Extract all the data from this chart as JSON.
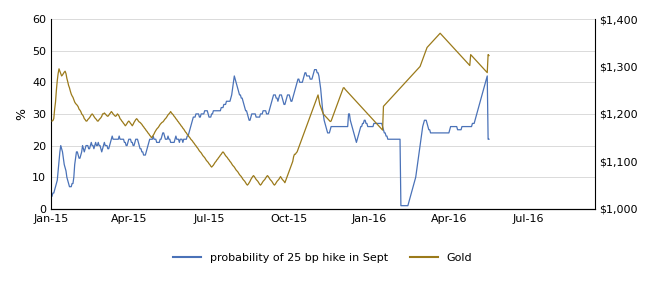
{
  "ylabel_left": "%",
  "ylim_left": [
    0,
    60
  ],
  "ylim_right": [
    1000,
    1400
  ],
  "yticks_left": [
    0,
    10,
    20,
    30,
    40,
    50,
    60
  ],
  "yticks_right": [
    1000,
    1100,
    1200,
    1300,
    1400
  ],
  "line1_color": "#4a72b8",
  "line2_color": "#9b7a1a",
  "line1_label": "probability of 25 bp hike in Sept",
  "line2_label": "Gold",
  "background_color": "#ffffff",
  "prob": [
    4,
    5,
    5,
    6,
    7,
    8,
    9,
    12,
    15,
    18,
    20,
    19,
    18,
    16,
    14,
    13,
    12,
    10,
    9,
    8,
    7,
    7,
    7,
    8,
    8,
    10,
    14,
    16,
    18,
    18,
    17,
    16,
    16,
    17,
    18,
    20,
    19,
    18,
    19,
    20,
    20,
    20,
    19,
    19,
    20,
    21,
    20,
    20,
    19,
    20,
    21,
    20,
    20,
    21,
    20,
    20,
    19,
    18,
    19,
    20,
    21,
    20,
    20,
    20,
    19,
    19,
    20,
    21,
    22,
    23,
    22,
    22,
    22,
    22,
    22,
    22,
    22,
    23,
    22,
    22,
    22,
    22,
    22,
    21,
    21,
    20,
    20,
    21,
    22,
    22,
    22,
    21,
    21,
    20,
    20,
    21,
    22,
    22,
    22,
    21,
    20,
    19,
    19,
    18,
    18,
    17,
    17,
    17,
    18,
    19,
    20,
    21,
    22,
    22,
    22,
    22,
    23,
    22,
    22,
    22,
    21,
    21,
    21,
    21,
    22,
    22,
    23,
    24,
    24,
    23,
    22,
    22,
    22,
    23,
    22,
    22,
    21,
    21,
    21,
    21,
    21,
    22,
    23,
    22,
    22,
    22,
    21,
    22,
    22,
    22,
    21,
    22,
    22,
    22,
    22,
    23,
    23,
    24,
    25,
    26,
    27,
    28,
    29,
    29,
    29,
    30,
    30,
    30,
    30,
    29,
    29,
    30,
    30,
    30,
    30,
    31,
    31,
    31,
    31,
    30,
    29,
    29,
    29,
    30,
    30,
    31,
    31,
    31,
    31,
    31,
    31,
    31,
    31,
    31,
    32,
    32,
    32,
    33,
    33,
    33,
    34,
    34,
    34,
    34,
    34,
    35,
    36,
    38,
    40,
    42,
    41,
    40,
    39,
    38,
    37,
    36,
    36,
    35,
    35,
    34,
    33,
    32,
    31,
    31,
    30,
    29,
    28,
    28,
    29,
    30,
    30,
    30,
    30,
    30,
    29,
    29,
    29,
    29,
    29,
    30,
    30,
    30,
    31,
    31,
    31,
    31,
    30,
    30,
    30,
    31,
    32,
    33,
    34,
    35,
    36,
    36,
    36,
    35,
    35,
    34,
    35,
    36,
    36,
    36,
    35,
    34,
    33,
    33,
    34,
    35,
    36,
    36,
    36,
    35,
    34,
    34,
    35,
    36,
    37,
    38,
    39,
    40,
    41,
    41,
    40,
    40,
    40,
    40,
    41,
    42,
    43,
    43,
    42,
    42,
    42,
    42,
    41,
    41,
    41,
    42,
    43,
    44,
    44,
    44,
    43,
    43,
    42,
    40,
    38,
    35,
    32,
    30,
    28,
    27,
    26,
    25,
    24,
    24,
    24,
    25,
    26,
    26,
    26,
    26,
    26,
    26,
    26,
    26,
    26,
    26,
    26,
    26,
    26,
    26,
    26,
    26,
    26,
    26,
    26,
    26,
    30,
    30,
    28,
    27,
    26,
    25,
    24,
    23,
    22,
    21,
    22,
    23,
    24,
    25,
    26,
    26,
    27,
    27,
    28,
    28,
    27,
    27,
    26,
    26,
    26,
    26,
    26,
    26,
    26,
    27,
    27,
    27,
    27,
    27,
    27,
    27,
    27,
    27,
    27,
    26,
    25,
    24,
    24,
    23,
    23,
    22,
    22,
    22,
    22,
    22,
    22,
    22,
    22,
    22,
    22,
    22,
    22,
    22,
    22,
    22,
    1,
    1,
    1,
    1,
    1,
    1,
    1,
    1,
    1,
    2,
    3,
    4,
    5,
    6,
    7,
    8,
    9,
    10,
    12,
    14,
    16,
    18,
    20,
    22,
    24,
    26,
    27,
    28,
    28,
    28,
    27,
    26,
    25,
    25,
    24,
    24,
    24,
    24,
    24,
    24,
    24,
    24,
    24,
    24,
    24,
    24,
    24,
    24,
    24,
    24,
    24,
    24,
    24,
    24,
    24,
    24,
    25,
    26,
    26,
    26,
    26,
    26,
    26,
    26,
    26,
    25,
    25,
    25,
    25,
    25,
    26,
    26,
    26,
    26,
    26,
    26,
    26,
    26,
    26,
    26,
    26,
    26,
    27,
    27,
    27,
    28,
    29,
    30,
    31,
    32,
    33,
    34,
    35,
    36,
    37,
    38,
    39,
    40,
    41,
    42,
    22,
    22
  ],
  "gold": [
    1185,
    1186,
    1190,
    1210,
    1225,
    1250,
    1270,
    1285,
    1295,
    1290,
    1285,
    1280,
    1282,
    1285,
    1288,
    1290,
    1285,
    1275,
    1268,
    1260,
    1255,
    1248,
    1242,
    1238,
    1235,
    1230,
    1225,
    1222,
    1220,
    1218,
    1215,
    1210,
    1208,
    1205,
    1200,
    1198,
    1195,
    1190,
    1188,
    1185,
    1185,
    1188,
    1190,
    1192,
    1195,
    1198,
    1200,
    1198,
    1195,
    1192,
    1190,
    1188,
    1185,
    1185,
    1188,
    1190,
    1192,
    1195,
    1200,
    1200,
    1202,
    1200,
    1198,
    1196,
    1195,
    1197,
    1200,
    1202,
    1205,
    1203,
    1200,
    1198,
    1196,
    1195,
    1197,
    1200,
    1198,
    1195,
    1190,
    1188,
    1185,
    1183,
    1180,
    1178,
    1175,
    1177,
    1180,
    1183,
    1185,
    1183,
    1180,
    1178,
    1175,
    1178,
    1182,
    1185,
    1188,
    1190,
    1188,
    1185,
    1183,
    1182,
    1180,
    1178,
    1175,
    1173,
    1170,
    1168,
    1165,
    1163,
    1160,
    1158,
    1155,
    1153,
    1150,
    1152,
    1155,
    1158,
    1162,
    1165,
    1168,
    1170,
    1172,
    1175,
    1178,
    1180,
    1182,
    1183,
    1185,
    1188,
    1190,
    1192,
    1195,
    1198,
    1200,
    1202,
    1205,
    1202,
    1200,
    1198,
    1195,
    1193,
    1190,
    1188,
    1185,
    1183,
    1180,
    1178,
    1175,
    1173,
    1170,
    1168,
    1165,
    1162,
    1160,
    1157,
    1155,
    1152,
    1150,
    1147,
    1145,
    1143,
    1140,
    1138,
    1135,
    1133,
    1130,
    1128,
    1125,
    1122,
    1120,
    1118,
    1115,
    1112,
    1110,
    1108,
    1105,
    1102,
    1100,
    1098,
    1095,
    1093,
    1090,
    1088,
    1090,
    1092,
    1095,
    1098,
    1100,
    1103,
    1105,
    1108,
    1110,
    1113,
    1115,
    1118,
    1120,
    1118,
    1115,
    1112,
    1110,
    1108,
    1105,
    1103,
    1100,
    1098,
    1095,
    1092,
    1090,
    1088,
    1085,
    1082,
    1080,
    1078,
    1075,
    1072,
    1070,
    1068,
    1065,
    1062,
    1060,
    1058,
    1055,
    1052,
    1050,
    1052,
    1055,
    1058,
    1062,
    1065,
    1068,
    1070,
    1068,
    1065,
    1062,
    1060,
    1058,
    1055,
    1052,
    1050,
    1052,
    1055,
    1058,
    1060,
    1062,
    1065,
    1068,
    1070,
    1068,
    1065,
    1062,
    1060,
    1058,
    1055,
    1052,
    1050,
    1052,
    1055,
    1058,
    1060,
    1062,
    1065,
    1068,
    1065,
    1062,
    1060,
    1058,
    1055,
    1060,
    1065,
    1070,
    1075,
    1080,
    1085,
    1090,
    1095,
    1100,
    1110,
    1115,
    1115,
    1118,
    1120,
    1125,
    1130,
    1135,
    1140,
    1145,
    1150,
    1155,
    1160,
    1165,
    1170,
    1175,
    1180,
    1185,
    1190,
    1195,
    1200,
    1205,
    1210,
    1215,
    1220,
    1225,
    1230,
    1235,
    1240,
    1230,
    1220,
    1215,
    1210,
    1205,
    1200,
    1198,
    1196,
    1194,
    1192,
    1190,
    1188,
    1186,
    1184,
    1185,
    1190,
    1195,
    1200,
    1205,
    1210,
    1215,
    1220,
    1225,
    1230,
    1235,
    1240,
    1245,
    1250,
    1255,
    1255,
    1252,
    1250,
    1248,
    1246,
    1244,
    1242,
    1240,
    1238,
    1236,
    1234,
    1232,
    1230,
    1228,
    1226,
    1224,
    1222,
    1220,
    1218,
    1216,
    1214,
    1212,
    1210,
    1208,
    1206,
    1204,
    1202,
    1200,
    1198,
    1196,
    1194,
    1192,
    1190,
    1188,
    1186,
    1184,
    1182,
    1180,
    1178,
    1176,
    1174,
    1172,
    1170,
    1168,
    1166,
    1216,
    1218,
    1220,
    1222,
    1224,
    1226,
    1228,
    1230,
    1232,
    1234,
    1236,
    1238,
    1240,
    1242,
    1244,
    1246,
    1248,
    1250,
    1252,
    1254,
    1256,
    1258,
    1260,
    1262,
    1264,
    1266,
    1268,
    1270,
    1272,
    1274,
    1276,
    1278,
    1280,
    1282,
    1284,
    1286,
    1288,
    1290,
    1292,
    1294,
    1296,
    1298,
    1300,
    1305,
    1310,
    1315,
    1320,
    1325,
    1330,
    1335,
    1340,
    1342,
    1344,
    1346,
    1348,
    1350,
    1352,
    1354,
    1356,
    1358,
    1360,
    1362,
    1364,
    1366,
    1368,
    1370,
    1368,
    1366,
    1364,
    1362,
    1360,
    1358,
    1356,
    1354,
    1352,
    1350,
    1348,
    1346,
    1344,
    1342,
    1340,
    1338,
    1336,
    1334,
    1332,
    1330,
    1328,
    1326,
    1324,
    1322,
    1320,
    1318,
    1316,
    1314,
    1312,
    1310,
    1308,
    1306,
    1304,
    1302,
    1325,
    1323,
    1321,
    1319,
    1317,
    1315,
    1313,
    1311,
    1309,
    1307,
    1305,
    1303,
    1301,
    1299,
    1297,
    1295,
    1293,
    1291,
    1289,
    1287,
    1325,
    1323
  ]
}
